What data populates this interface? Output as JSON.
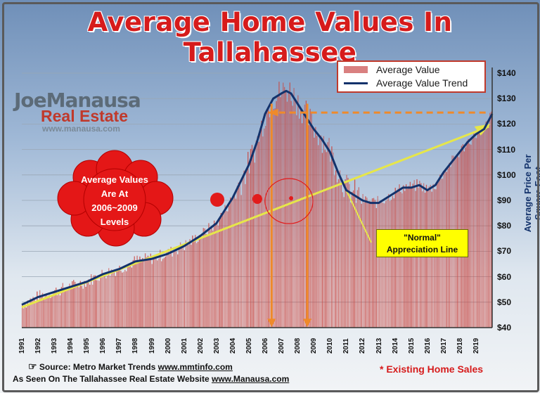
{
  "title": "Average Home Values In Tallahassee",
  "logo": {
    "brand": "JoeManausa",
    "sub": "Real Estate",
    "web": "www.manausa.com"
  },
  "bubble": {
    "text": [
      "Average Values",
      "Are At",
      "2006~2009",
      "Levels"
    ]
  },
  "legend": {
    "bar_label": "Average Value",
    "line_label": "Average Value Trend"
  },
  "annotation": {
    "line1": "\"Normal\"",
    "line2": "Appreciation Line"
  },
  "footer": {
    "source_prefix": "Source:  Metro Market Trends  ",
    "source_link": "www.mmtinfo.com",
    "asseen_prefix": "As Seen On The Tallahassee Real Estate Website  ",
    "asseen_link": "www.Manausa.com",
    "note": "* Existing Home Sales"
  },
  "colors": {
    "bar": "#c9453f",
    "trend": "#13326b",
    "normal_line": "#e6e64a",
    "arrow": "#ef8a2a",
    "title": "#d61b1b"
  },
  "chart_data": {
    "type": "bar",
    "title": "Average Home Values In Tallahassee",
    "ylabel": "Average Price Per Square Foot",
    "ylim": [
      40,
      140
    ],
    "yticks": [
      "$40",
      "$50",
      "$60",
      "$70",
      "$80",
      "$90",
      "$100",
      "$110",
      "$120",
      "$130",
      "$140"
    ],
    "xticks": [
      "1991",
      "1992",
      "1993",
      "1994",
      "1995",
      "1996",
      "1997",
      "1998",
      "1999",
      "2000",
      "2001",
      "2002",
      "2003",
      "2004",
      "2005",
      "2006",
      "2007",
      "2008",
      "2009",
      "2010",
      "2011",
      "2012",
      "2013",
      "2014",
      "2015",
      "2016",
      "2017",
      "2018",
      "2019"
    ],
    "x_range": [
      1991,
      2020
    ],
    "series": [
      {
        "name": "Average Value Trend",
        "x": [
          1991,
          1992,
          1993,
          1994,
          1995,
          1996,
          1997,
          1998,
          1999,
          2000,
          2001,
          2002,
          2003,
          2004,
          2005,
          2005.5,
          2006,
          2006.5,
          2007,
          2007.3,
          2007.6,
          2008,
          2008.5,
          2009,
          2009.5,
          2010,
          2010.5,
          2011,
          2011.5,
          2012,
          2012.5,
          2013,
          2013.5,
          2014,
          2014.5,
          2015,
          2015.5,
          2016,
          2016.5,
          2017,
          2017.5,
          2018,
          2018.5,
          2019,
          2019.5,
          2020
        ],
        "y": [
          49,
          52,
          54,
          56,
          58,
          61,
          63,
          66,
          67,
          69,
          72,
          76,
          81,
          91,
          104,
          113,
          124,
          130,
          132,
          133,
          132,
          128,
          123,
          118,
          114,
          109,
          101,
          94,
          92,
          90,
          89,
          89,
          91,
          93,
          95,
          95,
          96,
          94,
          96,
          101,
          105,
          109,
          113,
          116,
          118,
          124
        ]
      }
    ],
    "annotations": [
      {
        "type": "arrow",
        "from_x": 2006.4,
        "to_x": 2006.4,
        "to_y": 40
      },
      {
        "type": "arrow",
        "from_x": 2008.6,
        "to_x": 2008.6,
        "to_y": 40
      },
      {
        "type": "dashed",
        "y": 124.5,
        "x_start": 2006.2,
        "x_end": 2020
      }
    ]
  }
}
